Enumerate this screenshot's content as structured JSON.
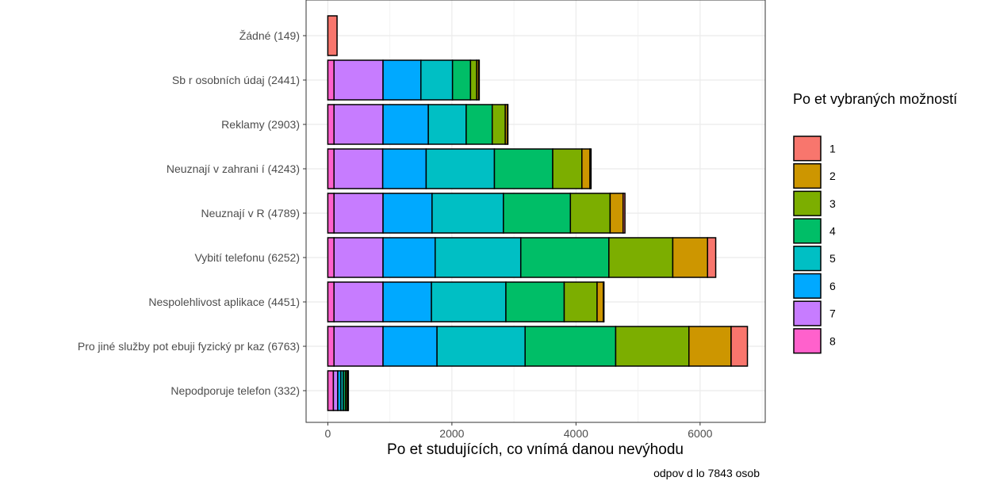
{
  "chart_data": {
    "type": "bar",
    "orientation": "horizontal",
    "stacked": true,
    "xlabel": "Po et studujících, co vnímá danou nevýhodu",
    "caption": "odpov d lo 7843 osob",
    "xlim": [
      -350,
      7050
    ],
    "xticks": [
      0,
      2000,
      4000,
      6000
    ],
    "grid": true,
    "legend": {
      "title": "Po et vybraných možností",
      "position": "right",
      "entries": [
        {
          "label": "1",
          "color": "#F8766D"
        },
        {
          "label": "2",
          "color": "#CD9600"
        },
        {
          "label": "3",
          "color": "#7CAE00"
        },
        {
          "label": "4",
          "color": "#00BE67"
        },
        {
          "label": "5",
          "color": "#00BFC4"
        },
        {
          "label": "6",
          "color": "#00A9FF"
        },
        {
          "label": "7",
          "color": "#C77CFF"
        },
        {
          "label": "8",
          "color": "#FF61CC"
        }
      ]
    },
    "categories": [
      "Žádné (149)",
      "Sb r osobních údaj  (2441)",
      "Reklamy (2903)",
      "Neuznají v zahrani í (4243)",
      "Neuznají v  R (4789)",
      "Vybití telefonu (6252)",
      "Nespolehlivost aplikace (4451)",
      "Pro jiné služby pot ebuji fyzický pr kaz (6763)",
      "Nepodporuje telefon (332)"
    ],
    "series": [
      {
        "name": "8",
        "values": [
          0,
          100,
          100,
          100,
          100,
          100,
          100,
          100,
          90
        ]
      },
      {
        "name": "7",
        "values": [
          0,
          790,
          790,
          785,
          790,
          790,
          790,
          790,
          70
        ]
      },
      {
        "name": "6",
        "values": [
          0,
          610,
          730,
          700,
          790,
          840,
          780,
          870,
          50
        ]
      },
      {
        "name": "5",
        "values": [
          0,
          510,
          610,
          1100,
          1150,
          1380,
          1200,
          1420,
          40
        ]
      },
      {
        "name": "4",
        "values": [
          0,
          290,
          420,
          940,
          1080,
          1420,
          940,
          1460,
          35
        ]
      },
      {
        "name": "3",
        "values": [
          0,
          100,
          210,
          470,
          640,
          1030,
          530,
          1180,
          25
        ]
      },
      {
        "name": "2",
        "values": [
          0,
          31,
          33,
          130,
          209,
          560,
          101,
          680,
          12
        ]
      },
      {
        "name": "1",
        "values": [
          149,
          10,
          10,
          18,
          30,
          132,
          10,
          263,
          10
        ]
      }
    ]
  }
}
